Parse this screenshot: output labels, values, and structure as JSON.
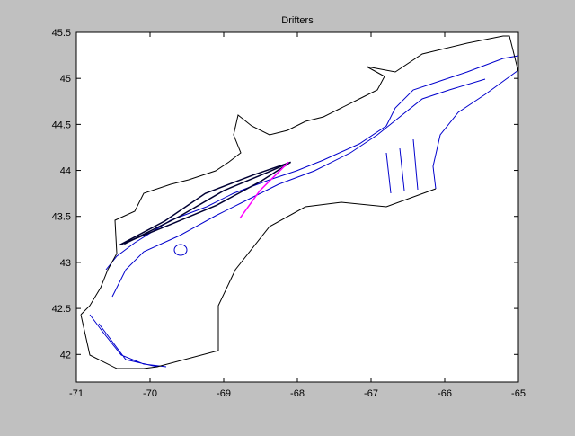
{
  "chart_data": {
    "type": "line",
    "title": "Drifters",
    "xlim": [
      -71,
      -65
    ],
    "ylim": [
      41.7,
      45.5
    ],
    "xticks": [
      -71,
      -70,
      -69,
      -68,
      -67,
      -66,
      -65
    ],
    "yticks": [
      42,
      42.5,
      43,
      43.5,
      44,
      44.5,
      45,
      45.5
    ],
    "series": [
      {
        "color": "#000033",
        "x": [
          -70.41,
          -69.8,
          -69.25,
          -68.6,
          -68.09
        ],
        "values": [
          43.19,
          43.45,
          43.75,
          43.95,
          44.09
        ]
      },
      {
        "color": "#000033",
        "x": [
          -70.41,
          -69.7,
          -69.1,
          -68.5,
          -68.09
        ],
        "values": [
          43.19,
          43.42,
          43.62,
          43.88,
          44.09
        ]
      },
      {
        "color": "#000033",
        "x": [
          -70.35,
          -69.6,
          -69.0,
          -68.4,
          -68.12
        ],
        "values": [
          43.2,
          43.5,
          43.78,
          43.98,
          44.08
        ]
      },
      {
        "color": "#ff00ff",
        "x": [
          -68.78,
          -68.51,
          -68.12
        ],
        "values": [
          43.48,
          43.78,
          44.09
        ]
      }
    ]
  }
}
